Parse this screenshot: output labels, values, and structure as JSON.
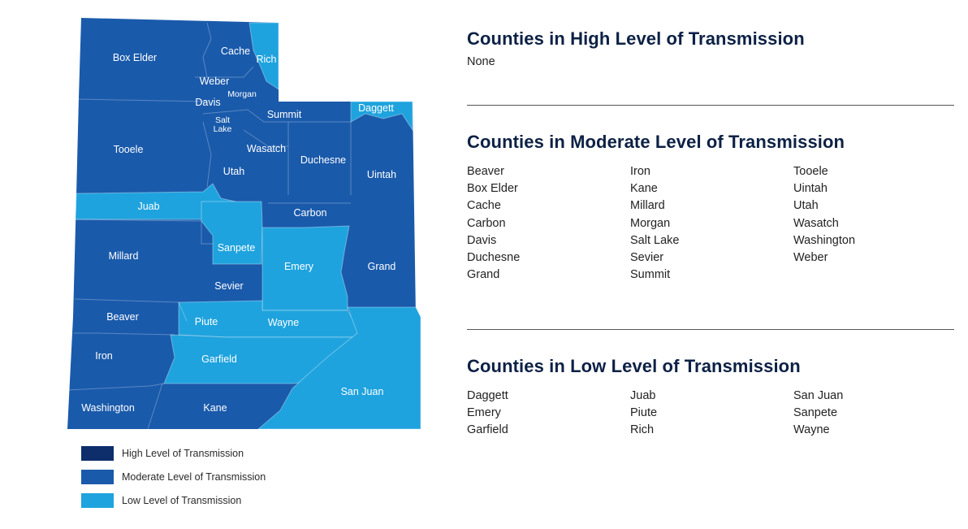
{
  "colors": {
    "high": "#0d2e6b",
    "moderate": "#1a5aab",
    "low": "#1fa3de"
  },
  "legend": [
    {
      "key": "high",
      "label": "High Level of Transmission"
    },
    {
      "key": "moderate",
      "label": "Moderate Level of Transmission"
    },
    {
      "key": "low",
      "label": "Low Level of Transmission"
    }
  ],
  "counties": [
    {
      "name": "Box Elder",
      "level": "moderate"
    },
    {
      "name": "Cache",
      "level": "moderate"
    },
    {
      "name": "Rich",
      "level": "low"
    },
    {
      "name": "Weber",
      "level": "moderate"
    },
    {
      "name": "Morgan",
      "level": "moderate"
    },
    {
      "name": "Davis",
      "level": "moderate"
    },
    {
      "name": "Summit",
      "level": "moderate"
    },
    {
      "name": "Daggett",
      "level": "low"
    },
    {
      "name": "Salt Lake",
      "label_lines": [
        "Salt",
        "Lake"
      ],
      "level": "moderate"
    },
    {
      "name": "Tooele",
      "level": "moderate"
    },
    {
      "name": "Wasatch",
      "level": "moderate"
    },
    {
      "name": "Duchesne",
      "level": "moderate"
    },
    {
      "name": "Uintah",
      "level": "moderate"
    },
    {
      "name": "Utah",
      "level": "moderate"
    },
    {
      "name": "Juab",
      "level": "low"
    },
    {
      "name": "Carbon",
      "level": "moderate"
    },
    {
      "name": "Millard",
      "level": "moderate"
    },
    {
      "name": "Sanpete",
      "level": "low"
    },
    {
      "name": "Emery",
      "level": "low"
    },
    {
      "name": "Grand",
      "level": "moderate"
    },
    {
      "name": "Sevier",
      "level": "moderate"
    },
    {
      "name": "Beaver",
      "level": "moderate"
    },
    {
      "name": "Piute",
      "level": "low"
    },
    {
      "name": "Wayne",
      "level": "low"
    },
    {
      "name": "Iron",
      "level": "moderate"
    },
    {
      "name": "Garfield",
      "level": "low"
    },
    {
      "name": "San Juan",
      "level": "low"
    },
    {
      "name": "Washington",
      "level": "moderate"
    },
    {
      "name": "Kane",
      "level": "moderate"
    }
  ],
  "panel": {
    "high": {
      "title": "Counties in High Level of Transmission",
      "none_text": "None"
    },
    "moderate": {
      "title": "Counties in Moderate Level of Transmission",
      "columns": [
        [
          "Beaver",
          "Box Elder",
          "Cache",
          "Carbon",
          "Davis",
          "Duchesne",
          "Grand"
        ],
        [
          "Iron",
          "Kane",
          "Millard",
          "Morgan",
          "Salt Lake",
          "Sevier",
          "Summit"
        ],
        [
          "Tooele",
          "Uintah",
          "Utah",
          "Wasatch",
          "Washington",
          "Weber"
        ]
      ]
    },
    "low": {
      "title": "Counties in Low Level of Transmission",
      "columns": [
        [
          "Daggett",
          "Emery",
          "Garfield"
        ],
        [
          "Juab",
          "Piute",
          "Rich"
        ],
        [
          "San Juan",
          "Sanpete",
          "Wayne"
        ]
      ]
    }
  }
}
